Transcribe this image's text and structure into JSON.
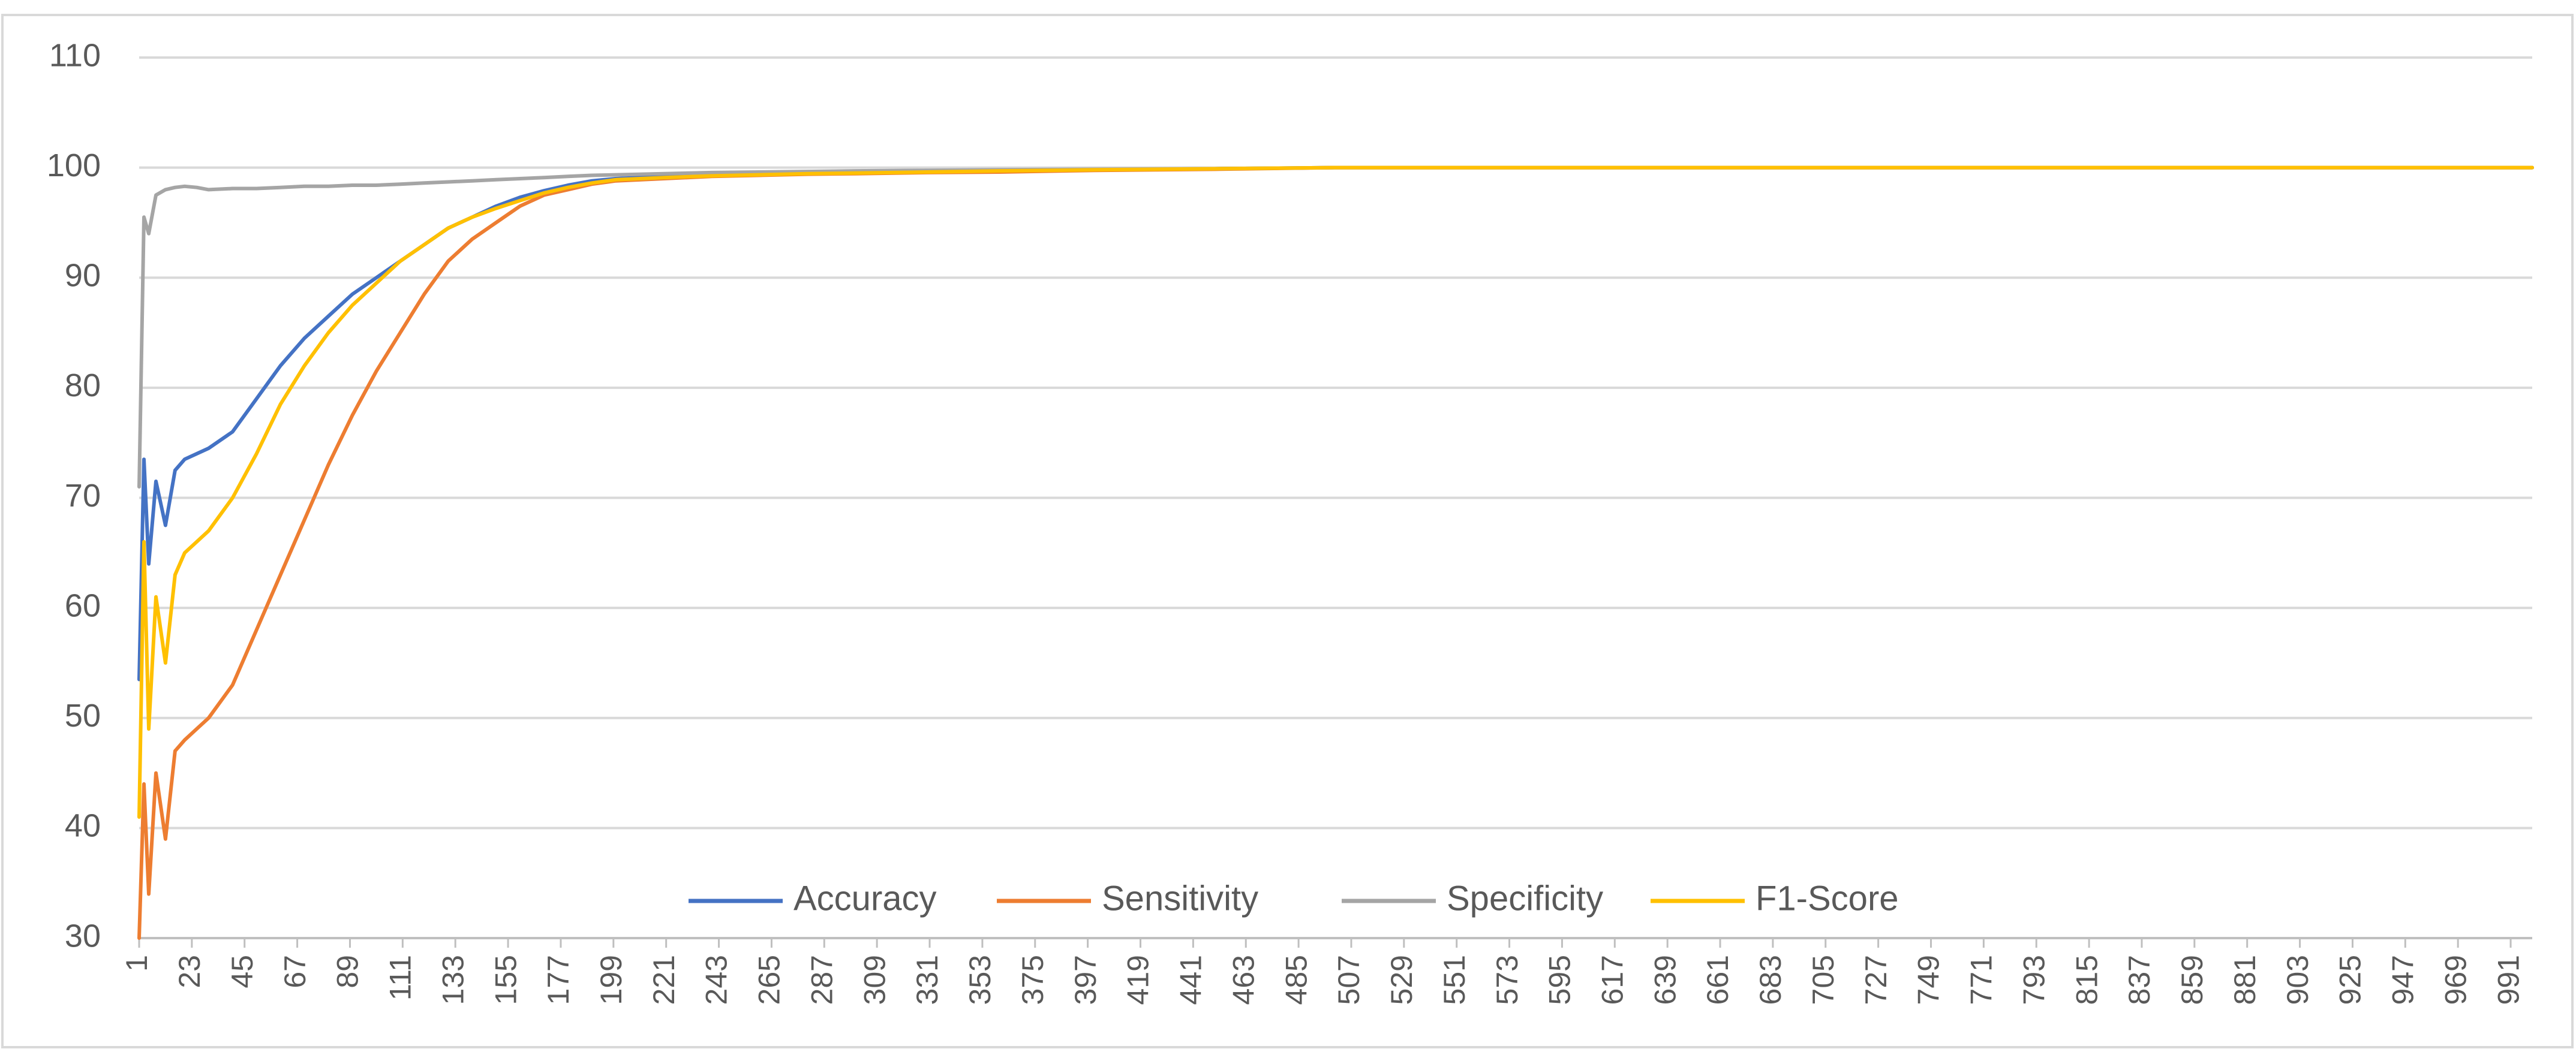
{
  "chart_data": {
    "type": "line",
    "title": "",
    "xlabel": "",
    "ylabel": "",
    "ylim": [
      30,
      110
    ],
    "y_ticks": [
      30,
      40,
      50,
      60,
      70,
      80,
      90,
      100,
      110
    ],
    "x_range": [
      1,
      1000
    ],
    "x_tick_labels": [
      1,
      23,
      45,
      67,
      89,
      111,
      133,
      155,
      177,
      199,
      221,
      243,
      265,
      287,
      309,
      331,
      353,
      375,
      397,
      419,
      441,
      463,
      485,
      507,
      529,
      551,
      573,
      595,
      617,
      639,
      661,
      683,
      705,
      727,
      749,
      771,
      793,
      815,
      837,
      859,
      881,
      903,
      925,
      947,
      969,
      991
    ],
    "grid": "horizontal",
    "legend_position": "bottom-inside",
    "x": [
      1,
      3,
      5,
      8,
      12,
      16,
      20,
      25,
      30,
      40,
      50,
      60,
      70,
      80,
      90,
      100,
      110,
      120,
      130,
      140,
      150,
      160,
      170,
      180,
      190,
      200,
      220,
      240,
      260,
      280,
      300,
      330,
      360,
      400,
      450,
      500,
      550,
      600,
      700,
      800,
      900,
      1000
    ],
    "series": [
      {
        "name": "Accuracy",
        "color": "#4472C4",
        "values": [
          53.5,
          73.5,
          64,
          71.5,
          67.5,
          72.5,
          73.5,
          74,
          74.5,
          76,
          79,
          82,
          84.5,
          86.5,
          88.5,
          90,
          91.5,
          93,
          94.5,
          95.5,
          96.5,
          97.3,
          97.9,
          98.4,
          98.8,
          99.0,
          99.2,
          99.3,
          99.4,
          99.5,
          99.55,
          99.65,
          99.75,
          99.8,
          99.9,
          100,
          100,
          100,
          100,
          100,
          100,
          100
        ]
      },
      {
        "name": "Sensitivity",
        "color": "#ED7D31",
        "values": [
          30,
          44,
          34,
          45,
          39,
          47,
          48,
          49,
          50,
          53,
          58,
          63,
          68,
          73,
          77.5,
          81.5,
          85,
          88.5,
          91.5,
          93.5,
          95,
          96.5,
          97.5,
          98,
          98.5,
          98.8,
          99.0,
          99.2,
          99.3,
          99.4,
          99.45,
          99.55,
          99.6,
          99.75,
          99.85,
          100,
          100,
          100,
          100,
          100,
          100,
          100
        ]
      },
      {
        "name": "Specificity",
        "color": "#A5A5A5",
        "values": [
          71,
          95.5,
          94,
          97.5,
          98,
          98.2,
          98.3,
          98.2,
          98.0,
          98.1,
          98.1,
          98.2,
          98.3,
          98.3,
          98.4,
          98.4,
          98.5,
          98.6,
          98.7,
          98.8,
          98.9,
          99.0,
          99.1,
          99.2,
          99.3,
          99.35,
          99.45,
          99.55,
          99.6,
          99.65,
          99.7,
          99.75,
          99.8,
          99.85,
          99.9,
          100,
          100,
          100,
          100,
          100,
          100,
          100
        ]
      },
      {
        "name": "F1-Score",
        "color": "#FFC000",
        "values": [
          41,
          66,
          49,
          61,
          55,
          63,
          65,
          66,
          67,
          70,
          74,
          78.5,
          82,
          85,
          87.5,
          89.5,
          91.5,
          93,
          94.5,
          95.5,
          96.3,
          97.0,
          97.7,
          98.2,
          98.6,
          98.9,
          99.1,
          99.25,
          99.35,
          99.45,
          99.5,
          99.6,
          99.7,
          99.8,
          99.9,
          100,
          100,
          100,
          100,
          100,
          100,
          100
        ]
      }
    ]
  }
}
